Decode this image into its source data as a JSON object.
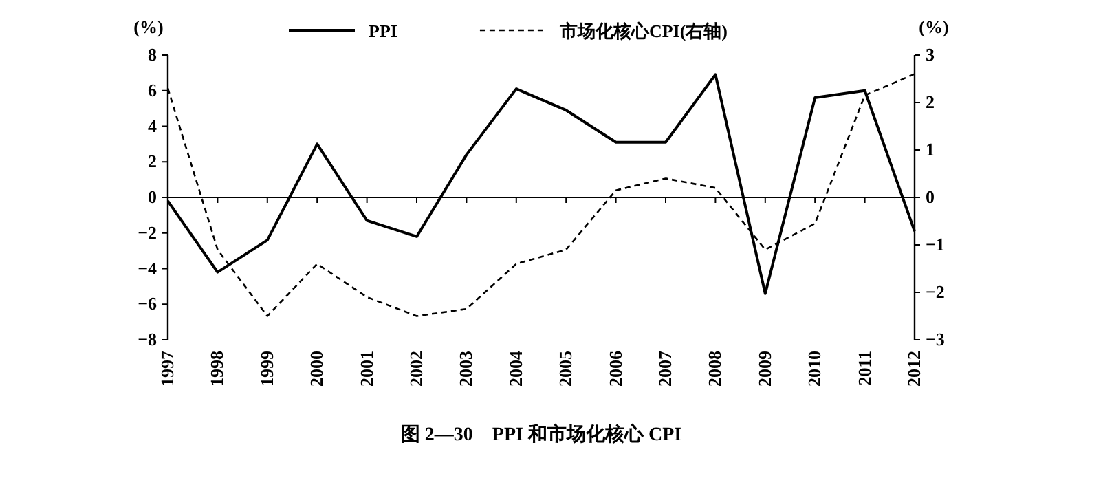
{
  "chart_data": {
    "type": "line",
    "title": "图 2—30　PPI 和市场化核心 CPI",
    "ylabel": "(%)",
    "y2label": "(%)",
    "categories": [
      "1997",
      "1998",
      "1999",
      "2000",
      "2001",
      "2002",
      "2003",
      "2004",
      "2005",
      "2006",
      "2007",
      "2008",
      "2009",
      "2010",
      "2011",
      "2012"
    ],
    "series": [
      {
        "name": "PPI",
        "color": "#000000",
        "line_style": "solid",
        "values": [
          -0.2,
          -4.2,
          -2.4,
          3.0,
          -1.3,
          -2.2,
          2.4,
          6.1,
          4.9,
          3.1,
          3.1,
          6.9,
          -5.4,
          5.6,
          6.0,
          -1.9
        ]
      },
      {
        "name": "市场化核心CPI(右轴)",
        "color": "#000000",
        "line_style": "dashed",
        "axis": "y2",
        "values": [
          2.3,
          -1.1,
          -2.5,
          -1.4,
          -2.1,
          -2.5,
          -2.35,
          -1.4,
          -1.1,
          0.15,
          0.4,
          0.2,
          -1.1,
          -0.55,
          2.15,
          2.6
        ]
      }
    ],
    "ylim": [
      -8,
      8
    ],
    "yticks": [
      -8,
      -6,
      -4,
      -2,
      0,
      2,
      4,
      6,
      8
    ],
    "y2lim": [
      -3,
      3
    ],
    "y2ticks": [
      -3,
      -2,
      -1,
      0,
      1,
      2,
      3
    ],
    "legend": "top",
    "marker": "none"
  }
}
